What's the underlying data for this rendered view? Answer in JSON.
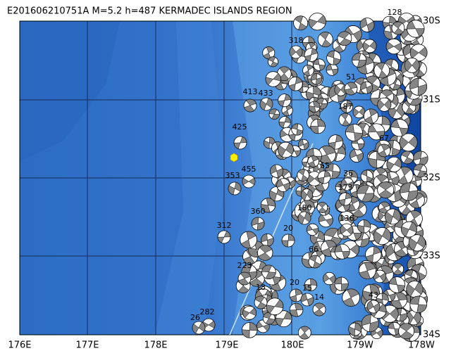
{
  "map": {
    "title": "E201606210751A M=5.2 h=487 KERMADEC ISLANDS REGION",
    "lon_labels": [
      "176E",
      "177E",
      "178E",
      "179E",
      "180E",
      "179W",
      "178W"
    ],
    "lat_labels": [
      "30S",
      "31S",
      "32S",
      "33S",
      "34S"
    ],
    "event_labels": [
      "425",
      "413",
      "433",
      "455",
      "353",
      "360",
      "312",
      "223",
      "282",
      "26",
      "18",
      "65",
      "36",
      "51",
      "318",
      "128",
      "187",
      "20",
      "14",
      "66",
      "67",
      "43",
      "20",
      "180",
      "136",
      "173",
      "15"
    ]
  }
}
